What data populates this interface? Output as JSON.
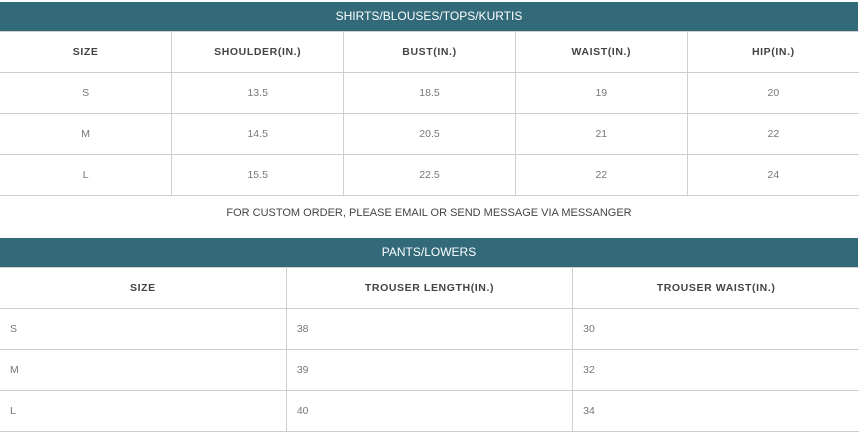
{
  "colors": {
    "header_band": "#326a7a"
  },
  "tops": {
    "title": "SHIRTS/BLOUSES/TOPS/KURTIS",
    "headers": [
      "SIZE",
      "SHOULDER(IN.)",
      "BUST(IN.)",
      "WAIST(IN.)",
      "HIP(IN.)"
    ],
    "rows": [
      [
        "S",
        "13.5",
        "18.5",
        "19",
        "20"
      ],
      [
        "M",
        "14.5",
        "20.5",
        "21",
        "22"
      ],
      [
        "L",
        "15.5",
        "22.5",
        "22",
        "24"
      ]
    ]
  },
  "message": "FOR CUSTOM ORDER, PLEASE EMAIL OR SEND MESSAGE VIA MESSANGER",
  "pants": {
    "title": "PANTS/LOWERS",
    "headers": [
      "SIZE",
      "TROUSER LENGTH(IN.)",
      "TROUSER WAIST(IN.)"
    ],
    "rows": [
      [
        "S",
        "38",
        "30"
      ],
      [
        "M",
        "39",
        "32"
      ],
      [
        "L",
        "40",
        "34"
      ]
    ]
  }
}
